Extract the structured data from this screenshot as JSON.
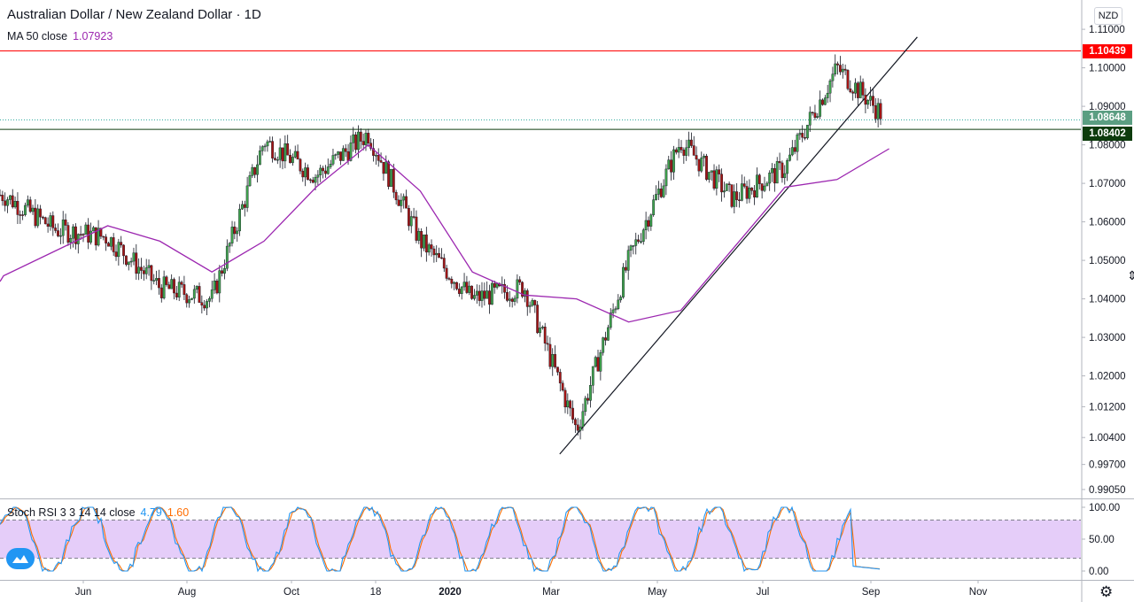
{
  "header": {
    "title": "Australian Dollar / New Zealand Dollar · 1D",
    "ma_label": "MA 50 close",
    "ma_value": "1.07923",
    "currency_button": "NZD"
  },
  "stoch": {
    "label": "Stoch RSI 3 3 14 14 close",
    "k_value": "4.79",
    "d_value": "1.60",
    "axis_ticks": [
      "100.00",
      "50.00",
      "0.00"
    ]
  },
  "colors": {
    "up": "#26a69a",
    "down": "#ef5350",
    "ma": "#9c27b0",
    "stoch_k": "#2196f3",
    "stoch_d": "#ff6d00",
    "resistance": "#ff0000",
    "support_badge": "#0d3b0d",
    "last_price_badge": "#26a69a"
  },
  "price_badges": {
    "resistance": "1.10439",
    "last": "1.08648",
    "support": "1.08402"
  },
  "icons": {
    "logo": "tradingview-logo-icon",
    "settings": "gear-icon"
  },
  "chart_data": {
    "type": "candlestick",
    "title": "Australian Dollar / New Zealand Dollar · 1D",
    "y_axis_ticks": [
      "1.11000",
      "1.10000",
      "1.09000",
      "1.08000",
      "1.07000",
      "1.06000",
      "1.05000",
      "1.04000",
      "1.03000",
      "1.02000",
      "1.01200",
      "1.00400",
      "0.99700",
      "0.99050"
    ],
    "x_axis_ticks": [
      "Jun",
      "Aug",
      "Oct",
      "18",
      "2020",
      "Mar",
      "May",
      "Jul",
      "Sep",
      "Nov"
    ],
    "grid": false,
    "series": [
      {
        "name": "AUD/NZD",
        "type": "candlestick",
        "approx_close": [
          [
            "Apr 2019",
            1.067
          ],
          [
            "May 2019",
            1.058
          ],
          [
            "Jun 2019",
            1.056
          ],
          [
            "Jul 2019",
            1.043
          ],
          [
            "Aug 2019",
            1.04
          ],
          [
            "Sep 2019",
            1.081
          ],
          [
            "Oct 2019",
            1.072
          ],
          [
            "Nov 2019",
            1.083
          ],
          [
            "Dec 2019",
            1.055
          ],
          [
            "Jan 2020",
            1.04
          ],
          [
            "Feb 2020",
            1.043
          ],
          [
            "Mar 2020",
            1.006
          ],
          [
            "Apr 2020",
            1.05
          ],
          [
            "May 2020",
            1.081
          ],
          [
            "Jun 2020",
            1.066
          ],
          [
            "Jul 2020",
            1.074
          ],
          [
            "Aug 2020",
            1.1
          ],
          [
            "Sep 2020",
            1.086
          ]
        ]
      },
      {
        "name": "MA 50 close",
        "type": "line",
        "approx_values": [
          [
            "Apr 2019",
            1.046
          ],
          [
            "Jun 2019",
            1.059
          ],
          [
            "Jul 2019",
            1.055
          ],
          [
            "Aug 2019",
            1.047
          ],
          [
            "Sep 2019",
            1.055
          ],
          [
            "Oct 2019",
            1.069
          ],
          [
            "Nov 2019",
            1.08
          ],
          [
            "Dec 2019",
            1.068
          ],
          [
            "Jan 2020",
            1.047
          ],
          [
            "Feb 2020",
            1.041
          ],
          [
            "Mar 2020",
            1.04
          ],
          [
            "Apr 2020",
            1.034
          ],
          [
            "May 2020",
            1.037
          ],
          [
            "Jun 2020",
            1.053
          ],
          [
            "Jul 2020",
            1.069
          ],
          [
            "Aug 2020",
            1.071
          ],
          [
            "Sep 2020",
            1.079
          ]
        ]
      }
    ],
    "annotations": [
      {
        "type": "horizontal_line",
        "label": "1.10439",
        "value": 1.10439
      },
      {
        "type": "horizontal_line",
        "label": "1.08402",
        "value": 1.08402
      },
      {
        "type": "horizontal_dotted_line",
        "label": "1.08648",
        "value": 1.08648
      },
      {
        "type": "trend_line",
        "from": [
          "Mar 2020",
          0.9997
        ],
        "to": [
          "Oct 2020",
          1.108
        ]
      }
    ],
    "indicator": {
      "name": "Stoch RSI 3 3 14 14 close",
      "ylim": [
        0,
        100
      ],
      "bands": [
        20,
        80
      ],
      "last_k": 4.79,
      "last_d": 1.6
    }
  }
}
